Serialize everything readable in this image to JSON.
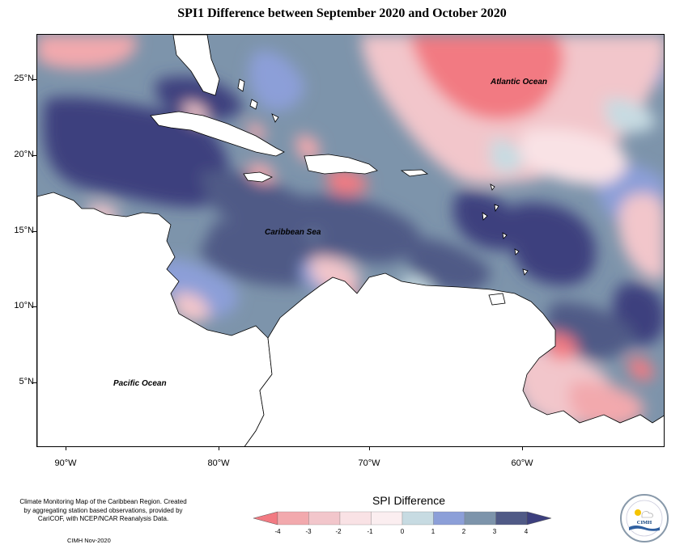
{
  "title": "SPI1 Difference between September 2020 and October 2020",
  "axes": {
    "y_ticks": [
      "25°N",
      "20°N",
      "15°N",
      "10°N",
      "5°N"
    ],
    "x_ticks": [
      "90°W",
      "80°W",
      "70°W",
      "60°W"
    ]
  },
  "map_labels": {
    "atlantic": "Atlantic Ocean",
    "caribbean": "Caribbean Sea",
    "pacific": "Pacific Ocean"
  },
  "footer": {
    "note": "Climate Monitoring Map of the Caribbean Region. Created by aggregating station based observations, provided by CariCOF, with NCEP/NCAR Reanalysis Data.",
    "credit": "CIMH Nov-2020"
  },
  "legend": {
    "title": "SPI Difference",
    "labels": [
      "-4",
      "-3",
      "-2",
      "-1",
      "0",
      "1",
      "2",
      "3",
      "4"
    ],
    "colors": [
      "#f27a82",
      "#f2a9ad",
      "#f2c6cb",
      "#f9e2e5",
      "#fbeef0",
      "#c7dbe2",
      "#8c9fd8",
      "#7d94ab",
      "#505a86",
      "#3c3f7e"
    ]
  },
  "logo": {
    "name": "CIMH"
  },
  "chart_data": {
    "type": "heatmap",
    "title": "SPI1 Difference between September 2020 and October 2020",
    "lon_range": [
      -92,
      -50
    ],
    "lat_range": [
      1,
      28
    ],
    "colorbar": {
      "title": "SPI Difference",
      "min": -4,
      "max": 4,
      "ticks": [
        -4,
        -3,
        -2,
        -1,
        0,
        1,
        2,
        3,
        4
      ]
    }
  }
}
